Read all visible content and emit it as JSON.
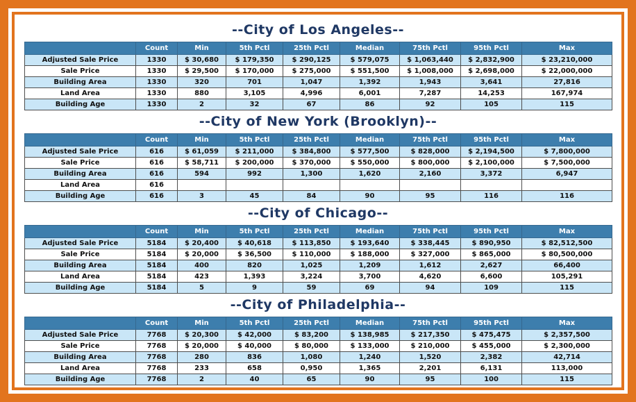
{
  "colors": {
    "accent_orange": "#E2741E",
    "header_blue": "#3D7EAD",
    "row_light_blue": "#C9E6F7",
    "title_navy": "#1F3864"
  },
  "columns": [
    "",
    "Count",
    "Min",
    "5th Pctl",
    "25th Pctl",
    "Median",
    "75th Pctl",
    "95th Pctl",
    "Max"
  ],
  "tables": [
    {
      "title": "--City of Los Angeles--",
      "rows": [
        {
          "label": "Adjusted Sale Price",
          "values": [
            "1330",
            "$ 30,680",
            "$ 179,350",
            "$ 290,125",
            "$ 579,075",
            "$ 1,063,440",
            "$ 2,832,900",
            "$ 23,210,000"
          ]
        },
        {
          "label": "Sale Price",
          "values": [
            "1330",
            "$ 29,500",
            "$ 170,000",
            "$ 275,000",
            "$ 551,500",
            "$ 1,008,000",
            "$ 2,698,000",
            "$ 22,000,000"
          ]
        },
        {
          "label": "Building Area",
          "values": [
            "1330",
            "320",
            "701",
            "1,047",
            "1,392",
            "1,943",
            "3,641",
            "27,816"
          ]
        },
        {
          "label": "Land Area",
          "values": [
            "1330",
            "880",
            "3,105",
            "4,996",
            "6,001",
            "7,287",
            "14,253",
            "167,974"
          ]
        },
        {
          "label": "Building Age",
          "values": [
            "1330",
            "2",
            "32",
            "67",
            "86",
            "92",
            "105",
            "115"
          ]
        }
      ]
    },
    {
      "title": "--City of New York (Brooklyn)--",
      "rows": [
        {
          "label": "Adjusted Sale Price",
          "values": [
            "616",
            "$ 61,059",
            "$ 211,000",
            "$ 384,800",
            "$ 577,500",
            "$ 828,000",
            "$ 2,194,500",
            "$ 7,800,000"
          ]
        },
        {
          "label": "Sale Price",
          "values": [
            "616",
            "$ 58,711",
            "$ 200,000",
            "$ 370,000",
            "$ 550,000",
            "$ 800,000",
            "$ 2,100,000",
            "$ 7,500,000"
          ]
        },
        {
          "label": "Building Area",
          "values": [
            "616",
            "594",
            "992",
            "1,300",
            "1,620",
            "2,160",
            "3,372",
            "6,947"
          ]
        },
        {
          "label": "Land Area",
          "values": [
            "616",
            "",
            "",
            "",
            "",
            "",
            "",
            ""
          ]
        },
        {
          "label": "Building Age",
          "values": [
            "616",
            "3",
            "45",
            "84",
            "90",
            "95",
            "116",
            "116"
          ]
        }
      ]
    },
    {
      "title": "--City of Chicago--",
      "rows": [
        {
          "label": "Adjusted Sale Price",
          "values": [
            "5184",
            "$ 20,400",
            "$ 40,618",
            "$ 113,850",
            "$ 193,640",
            "$ 338,445",
            "$ 890,950",
            "$ 82,512,500"
          ]
        },
        {
          "label": "Sale Price",
          "values": [
            "5184",
            "$ 20,000",
            "$ 36,500",
            "$ 110,000",
            "$ 188,000",
            "$ 327,000",
            "$ 865,000",
            "$ 80,500,000"
          ]
        },
        {
          "label": "Building Area",
          "values": [
            "5184",
            "400",
            "820",
            "1,025",
            "1,209",
            "1,612",
            "2,627",
            "66,400"
          ]
        },
        {
          "label": "Land Area",
          "values": [
            "5184",
            "423",
            "1,393",
            "3,224",
            "3,700",
            "4,620",
            "6,600",
            "105,291"
          ]
        },
        {
          "label": "Building Age",
          "values": [
            "5184",
            "5",
            "9",
            "59",
            "69",
            "94",
            "109",
            "115"
          ]
        }
      ]
    },
    {
      "title": "--City of Philadelphia--",
      "rows": [
        {
          "label": "Adjusted Sale Price",
          "values": [
            "7768",
            "$ 20,300",
            "$ 42,000",
            "$ 83,200",
            "$ 138,985",
            "$ 217,350",
            "$ 475,475",
            "$ 2,357,500"
          ]
        },
        {
          "label": "Sale Price",
          "values": [
            "7768",
            "$ 20,000",
            "$ 40,000",
            "$ 80,000",
            "$ 133,000",
            "$ 210,000",
            "$ 455,000",
            "$ 2,300,000"
          ]
        },
        {
          "label": "Building Area",
          "values": [
            "7768",
            "280",
            "836",
            "1,080",
            "1,240",
            "1,520",
            "2,382",
            "42,714"
          ]
        },
        {
          "label": "Land Area",
          "values": [
            "7768",
            "233",
            "658",
            "0,950",
            "1,365",
            "2,201",
            "6,131",
            "113,000"
          ]
        },
        {
          "label": "Building Age",
          "values": [
            "7768",
            "2",
            "40",
            "65",
            "90",
            "95",
            "100",
            "115"
          ]
        }
      ]
    }
  ]
}
